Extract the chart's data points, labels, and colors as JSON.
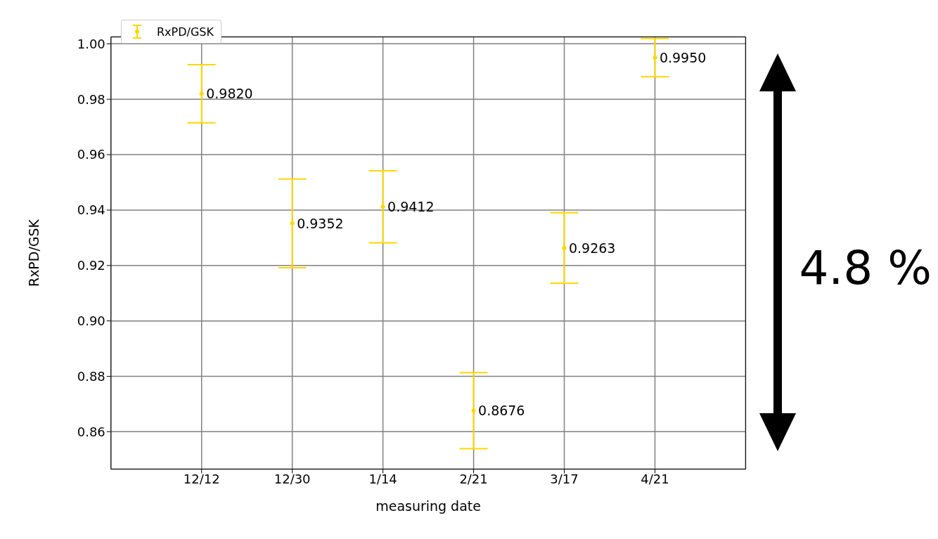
{
  "chart_data": {
    "type": "scatter",
    "xlabel": "measuring date",
    "ylabel": "RxPD/GSK",
    "categories": [
      "12/12",
      "12/30",
      "1/14",
      "2/21",
      "3/17",
      "4/21"
    ],
    "series": [
      {
        "name": "RxPD/GSK",
        "color": "#ffd700",
        "values": [
          0.982,
          0.9352,
          0.9412,
          0.8676,
          0.9263,
          0.995
        ],
        "errors": [
          0.0105,
          0.016,
          0.013,
          0.0137,
          0.0127,
          0.0069
        ],
        "value_labels": [
          "0.9820",
          "0.9352",
          "0.9412",
          "0.8676",
          "0.9263",
          "0.9950"
        ]
      }
    ],
    "ylim": [
      0.8465,
      1.0025
    ],
    "yticks": [
      {
        "value": 0.86,
        "label": "0.86"
      },
      {
        "value": 0.88,
        "label": "0.88"
      },
      {
        "value": 0.9,
        "label": "0.90"
      },
      {
        "value": 0.92,
        "label": "0.92"
      },
      {
        "value": 0.94,
        "label": "0.94"
      },
      {
        "value": 0.96,
        "label": "0.96"
      },
      {
        "value": 0.98,
        "label": "0.98"
      },
      {
        "value": 1.0,
        "label": "1.00"
      }
    ],
    "grid": true,
    "legend": "top left",
    "marker": "circle",
    "annotations": [
      "4.8 %"
    ]
  }
}
